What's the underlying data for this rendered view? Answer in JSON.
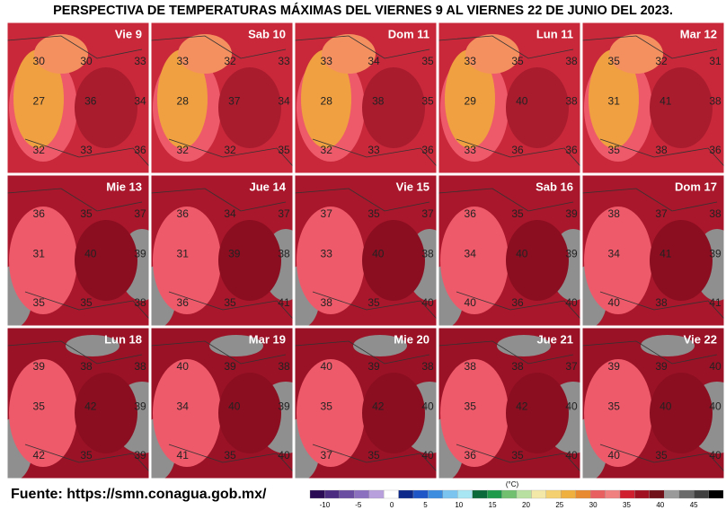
{
  "title": "PERSPECTIVA DE TEMPERATURAS MÁXIMAS DEL VIERNES 9 AL VIERNES 22 DE JUNIO DEL 2023.",
  "panels": [
    {
      "label": "Vie 9",
      "temps": [
        30,
        30,
        33,
        27,
        36,
        34,
        32,
        33,
        36
      ]
    },
    {
      "label": "Sab 10",
      "temps": [
        33,
        32,
        33,
        28,
        37,
        34,
        32,
        32,
        35
      ]
    },
    {
      "label": "Dom 11",
      "temps": [
        33,
        34,
        35,
        28,
        38,
        35,
        32,
        33,
        36
      ]
    },
    {
      "label": "Lun 11",
      "temps": [
        33,
        35,
        38,
        29,
        40,
        38,
        33,
        36,
        36
      ]
    },
    {
      "label": "Mar 12",
      "temps": [
        35,
        32,
        31,
        31,
        41,
        38,
        35,
        38,
        36
      ]
    },
    {
      "label": "Mie 13",
      "temps": [
        36,
        35,
        37,
        31,
        40,
        39,
        35,
        35,
        38
      ]
    },
    {
      "label": "Jue 14",
      "temps": [
        36,
        34,
        37,
        31,
        39,
        38,
        36,
        35,
        41
      ]
    },
    {
      "label": "Vie 15",
      "temps": [
        37,
        35,
        37,
        33,
        40,
        38,
        38,
        35,
        40
      ]
    },
    {
      "label": "Sab 16",
      "temps": [
        36,
        35,
        39,
        34,
        40,
        39,
        40,
        36,
        40
      ]
    },
    {
      "label": "Dom 17",
      "temps": [
        38,
        37,
        38,
        34,
        41,
        39,
        40,
        38,
        41
      ]
    },
    {
      "label": "Lun 18",
      "temps": [
        39,
        38,
        38,
        35,
        42,
        39,
        42,
        35,
        39
      ]
    },
    {
      "label": "Mar 19",
      "temps": [
        40,
        39,
        38,
        34,
        40,
        39,
        41,
        35,
        40
      ]
    },
    {
      "label": "Mie 20",
      "temps": [
        40,
        39,
        38,
        35,
        42,
        40,
        37,
        35,
        40
      ]
    },
    {
      "label": "Jue 21",
      "temps": [
        38,
        38,
        37,
        35,
        42,
        40,
        36,
        35,
        40
      ]
    },
    {
      "label": "Vie 22",
      "temps": [
        39,
        39,
        40,
        35,
        40,
        40,
        40,
        35,
        40
      ]
    }
  ],
  "source": "Fuente: https://smn.conagua.gob.mx/",
  "legend": {
    "unit": "(°C)",
    "labels": [
      -10,
      -5,
      0,
      5,
      10,
      15,
      20,
      25,
      30,
      35,
      40,
      45
    ]
  }
}
